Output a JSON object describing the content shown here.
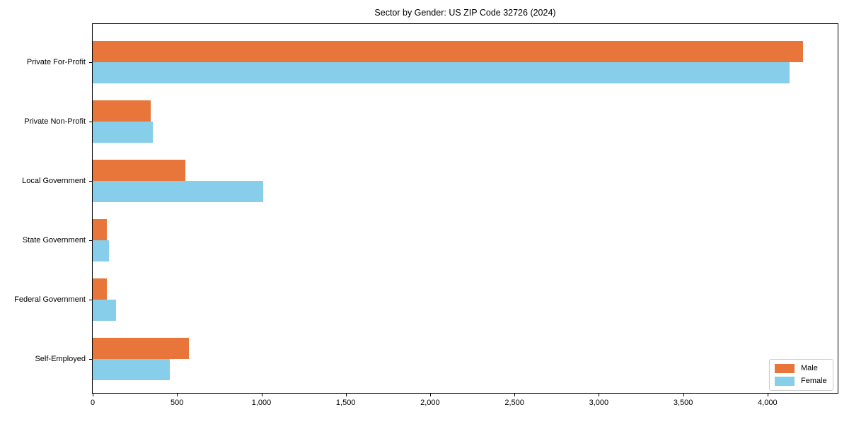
{
  "chart_data": {
    "type": "bar",
    "orientation": "horizontal",
    "title": "Sector by Gender: US ZIP Code 32726 (2024)",
    "categories": [
      "Private For-Profit",
      "Private Non-Profit",
      "Local Government",
      "State Government",
      "Federal Government",
      "Self-Employed"
    ],
    "series": [
      {
        "name": "Male",
        "color": "#e8763b",
        "values": [
          4210,
          345,
          550,
          85,
          85,
          570
        ]
      },
      {
        "name": "Female",
        "color": "#87ceeb",
        "values": [
          4130,
          355,
          1010,
          95,
          140,
          455
        ]
      }
    ],
    "xlabel": "",
    "ylabel": "",
    "xlim": [
      0,
      4416
    ],
    "xticks": {
      "values": [
        0,
        500,
        1000,
        1500,
        2000,
        2500,
        3000,
        3500,
        4000
      ],
      "labels": [
        "0",
        "500",
        "1,000",
        "1,500",
        "2,000",
        "2,500",
        "3,000",
        "3,500",
        "4,000"
      ]
    },
    "legend": {
      "position": "lower right"
    },
    "grid": false,
    "spine_color": "#000000",
    "background": "#ffffff"
  }
}
